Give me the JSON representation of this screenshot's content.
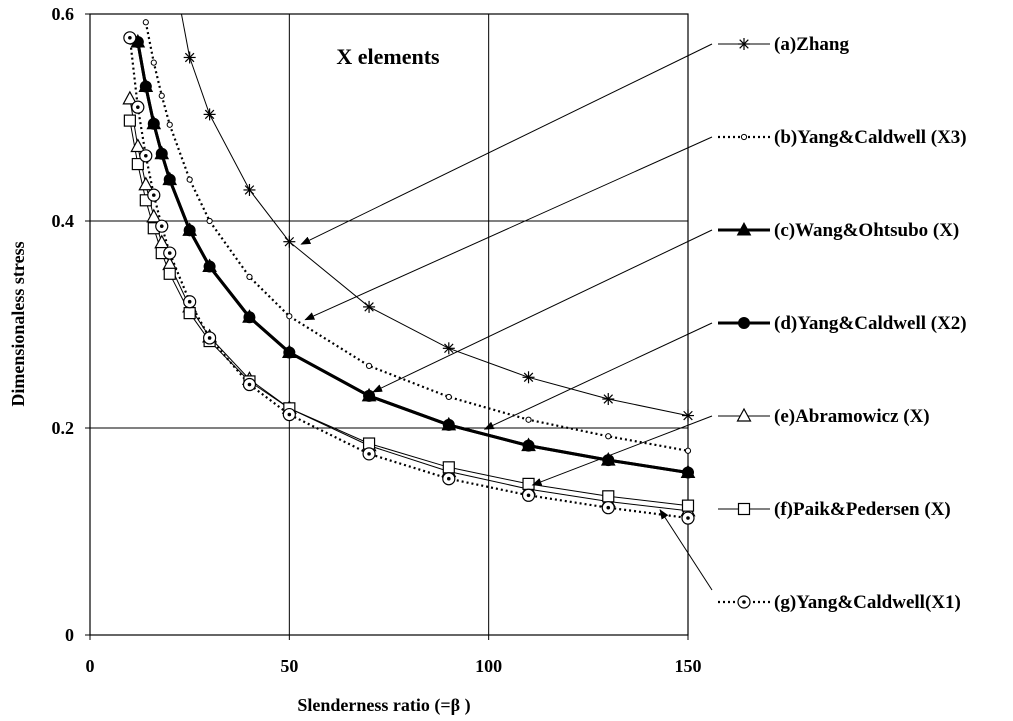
{
  "chart_data": {
    "type": "line",
    "title": "X elements",
    "xlabel": "Slenderness ratio (=β )",
    "ylabel": "Dimensionaless stress",
    "xlim": [
      0,
      150
    ],
    "ylim": [
      0,
      0.6
    ],
    "x_ticks": [
      "0",
      "50",
      "100",
      "150"
    ],
    "y_ticks": [
      "0",
      "0.2",
      "0.4",
      "0.6"
    ],
    "grid": true,
    "legend_position": "right",
    "series": [
      {
        "name": "(a)Zhang",
        "marker": "asterisk",
        "line": "solid-thin",
        "color": "#000000",
        "x": [
          25,
          30,
          40,
          50,
          70,
          90,
          110,
          130,
          150
        ],
        "y": [
          0.558,
          0.503,
          0.43,
          0.38,
          0.317,
          0.277,
          0.249,
          0.228,
          0.212
        ]
      },
      {
        "name": "(b)Yang&Caldwell (X3)",
        "marker": "small-circle",
        "line": "dotted",
        "color": "#000000",
        "x": [
          14,
          16,
          18,
          20,
          25,
          30,
          40,
          50,
          70,
          90,
          110,
          130,
          150
        ],
        "y": [
          0.592,
          0.553,
          0.521,
          0.493,
          0.44,
          0.4,
          0.346,
          0.308,
          0.26,
          0.23,
          0.208,
          0.192,
          0.178
        ]
      },
      {
        "name": "(c)Wang&Ohtsubo (X)",
        "marker": "filled-triangle",
        "line": "solid-thick",
        "color": "#000000",
        "x": [
          12,
          14,
          16,
          18,
          20,
          25,
          30,
          40,
          50,
          70,
          90,
          110,
          130,
          150
        ],
        "y": [
          0.573,
          0.53,
          0.494,
          0.465,
          0.44,
          0.391,
          0.356,
          0.307,
          0.273,
          0.231,
          0.203,
          0.183,
          0.169,
          0.157
        ]
      },
      {
        "name": "(d)Yang&Caldwell (X2)",
        "marker": "filled-circle",
        "line": "solid-thick",
        "color": "#000000",
        "x": [
          12,
          14,
          16,
          18,
          20,
          25,
          30,
          40,
          50,
          70,
          90,
          110,
          130,
          150
        ],
        "y": [
          0.573,
          0.53,
          0.494,
          0.465,
          0.44,
          0.391,
          0.356,
          0.307,
          0.273,
          0.231,
          0.203,
          0.183,
          0.169,
          0.157
        ]
      },
      {
        "name": "(e)Abramowicz (X)",
        "marker": "open-triangle",
        "line": "solid-thin",
        "color": "#000000",
        "x": [
          10,
          12,
          14,
          16,
          18,
          20,
          25,
          30,
          40,
          50,
          70,
          90,
          110,
          130,
          150
        ],
        "y": [
          0.518,
          0.472,
          0.435,
          0.404,
          0.379,
          0.358,
          0.317,
          0.288,
          0.247,
          0.219,
          0.183,
          0.158,
          0.141,
          0.129,
          0.12
        ]
      },
      {
        "name": "(f)Paik&Pedersen (X)",
        "marker": "open-square",
        "line": "solid-thin",
        "color": "#000000",
        "x": [
          10,
          12,
          14,
          16,
          18,
          20,
          25,
          30,
          40,
          50,
          70,
          90,
          110,
          130,
          150
        ],
        "y": [
          0.497,
          0.455,
          0.42,
          0.393,
          0.369,
          0.349,
          0.311,
          0.284,
          0.245,
          0.219,
          0.185,
          0.162,
          0.146,
          0.134,
          0.125
        ]
      },
      {
        "name": "(g)Yang&Caldwell(X1)",
        "marker": "open-circle-dot",
        "line": "dotted",
        "color": "#000000",
        "x": [
          10,
          12,
          14,
          16,
          18,
          20,
          25,
          30,
          40,
          50,
          70,
          90,
          110,
          130,
          150
        ],
        "y": [
          0.577,
          0.51,
          0.463,
          0.425,
          0.395,
          0.369,
          0.322,
          0.287,
          0.242,
          0.213,
          0.175,
          0.151,
          0.135,
          0.123,
          0.113
        ]
      }
    ],
    "annotations": [
      {
        "series_index": 0,
        "at_x": 52
      },
      {
        "series_index": 1,
        "at_x": 53
      },
      {
        "series_index": 2,
        "at_x": 70
      },
      {
        "series_index": 3,
        "at_x": 98
      },
      {
        "series_index": 4,
        "at_x": 110
      },
      {
        "series_index": 6,
        "at_x": 142
      }
    ]
  }
}
